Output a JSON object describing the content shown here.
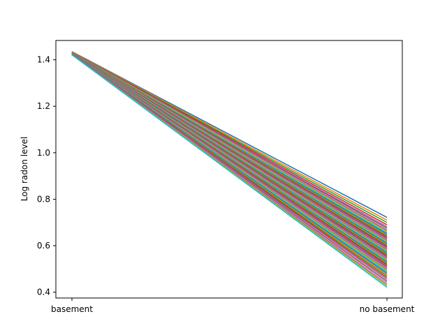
{
  "chart_data": {
    "type": "line",
    "title": "",
    "xlabel": "",
    "ylabel": "Log radon level",
    "categories": [
      "basement",
      "no basement"
    ],
    "ylim": [
      0.375,
      1.483
    ],
    "yticks": [
      0.4,
      0.6,
      0.8,
      1.0,
      1.2,
      1.4
    ],
    "ytick_labels": [
      "0.4",
      "0.6",
      "0.8",
      "1.0",
      "1.2",
      "1.4"
    ],
    "grid": false,
    "legend": "none",
    "series_count": 60,
    "series": [
      {
        "values": [
          1.435,
          0.722
        ]
      },
      {
        "values": [
          1.434,
          0.71
        ]
      },
      {
        "values": [
          1.433,
          0.7
        ]
      },
      {
        "values": [
          1.433,
          0.69
        ]
      },
      {
        "values": [
          1.432,
          0.682
        ]
      },
      {
        "values": [
          1.432,
          0.676
        ]
      },
      {
        "values": [
          1.431,
          0.67
        ]
      },
      {
        "values": [
          1.431,
          0.665
        ]
      },
      {
        "values": [
          1.431,
          0.66
        ]
      },
      {
        "values": [
          1.43,
          0.655
        ]
      },
      {
        "values": [
          1.43,
          0.65
        ]
      },
      {
        "values": [
          1.43,
          0.645
        ]
      },
      {
        "values": [
          1.43,
          0.641
        ]
      },
      {
        "values": [
          1.429,
          0.637
        ]
      },
      {
        "values": [
          1.429,
          0.633
        ]
      },
      {
        "values": [
          1.429,
          0.629
        ]
      },
      {
        "values": [
          1.429,
          0.625
        ]
      },
      {
        "values": [
          1.429,
          0.621
        ]
      },
      {
        "values": [
          1.428,
          0.617
        ]
      },
      {
        "values": [
          1.428,
          0.613
        ]
      },
      {
        "values": [
          1.428,
          0.609
        ]
      },
      {
        "values": [
          1.428,
          0.605
        ]
      },
      {
        "values": [
          1.428,
          0.601
        ]
      },
      {
        "values": [
          1.428,
          0.597
        ]
      },
      {
        "values": [
          1.427,
          0.593
        ]
      },
      {
        "values": [
          1.427,
          0.589
        ]
      },
      {
        "values": [
          1.427,
          0.585
        ]
      },
      {
        "values": [
          1.427,
          0.581
        ]
      },
      {
        "values": [
          1.427,
          0.577
        ]
      },
      {
        "values": [
          1.427,
          0.573
        ]
      },
      {
        "values": [
          1.427,
          0.569
        ]
      },
      {
        "values": [
          1.426,
          0.565
        ]
      },
      {
        "values": [
          1.426,
          0.561
        ]
      },
      {
        "values": [
          1.426,
          0.557
        ]
      },
      {
        "values": [
          1.426,
          0.553
        ]
      },
      {
        "values": [
          1.426,
          0.549
        ]
      },
      {
        "values": [
          1.426,
          0.545
        ]
      },
      {
        "values": [
          1.426,
          0.541
        ]
      },
      {
        "values": [
          1.425,
          0.537
        ]
      },
      {
        "values": [
          1.425,
          0.533
        ]
      },
      {
        "values": [
          1.425,
          0.529
        ]
      },
      {
        "values": [
          1.425,
          0.525
        ]
      },
      {
        "values": [
          1.425,
          0.521
        ]
      },
      {
        "values": [
          1.425,
          0.517
        ]
      },
      {
        "values": [
          1.425,
          0.512
        ]
      },
      {
        "values": [
          1.424,
          0.507
        ]
      },
      {
        "values": [
          1.424,
          0.502
        ]
      },
      {
        "values": [
          1.424,
          0.497
        ]
      },
      {
        "values": [
          1.424,
          0.492
        ]
      },
      {
        "values": [
          1.424,
          0.487
        ]
      },
      {
        "values": [
          1.424,
          0.481
        ]
      },
      {
        "values": [
          1.423,
          0.475
        ]
      },
      {
        "values": [
          1.423,
          0.469
        ]
      },
      {
        "values": [
          1.423,
          0.462
        ]
      },
      {
        "values": [
          1.423,
          0.455
        ]
      },
      {
        "values": [
          1.422,
          0.447
        ]
      },
      {
        "values": [
          1.422,
          0.44
        ]
      },
      {
        "values": [
          1.422,
          0.433
        ]
      },
      {
        "values": [
          1.421,
          0.427
        ]
      },
      {
        "values": [
          1.421,
          0.421
        ]
      }
    ],
    "colors": [
      "#1f77b4",
      "#ff7f0e",
      "#2ca02c",
      "#d62728",
      "#9467bd",
      "#8c564b",
      "#e377c2",
      "#7f7f7f",
      "#bcbd22",
      "#17becf"
    ]
  }
}
